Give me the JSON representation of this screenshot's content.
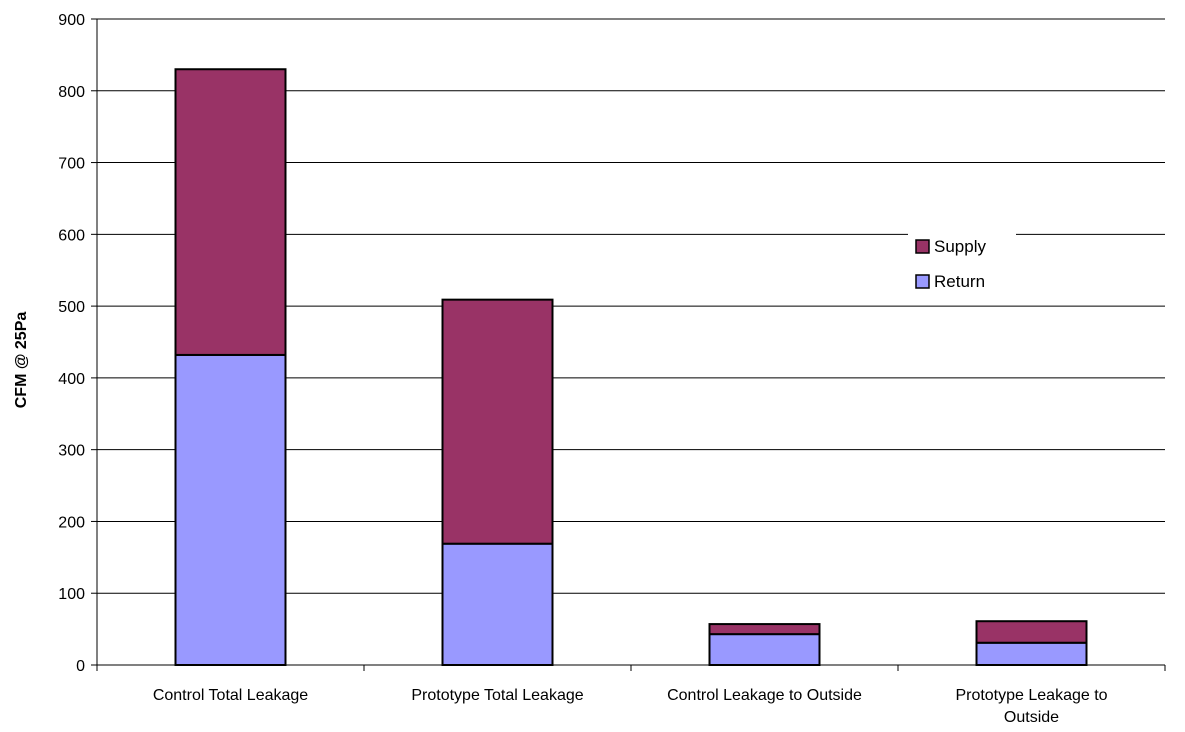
{
  "chart_data": {
    "type": "bar",
    "stacked": true,
    "title": "",
    "xlabel": "",
    "ylabel": "CFM @ 25Pa",
    "ylim": [
      0,
      900
    ],
    "yticks": [
      0,
      100,
      200,
      300,
      400,
      500,
      600,
      700,
      800,
      900
    ],
    "grid": true,
    "legend_position": "right",
    "categories": [
      [
        "Control Total Leakage"
      ],
      [
        "Prototype Total Leakage"
      ],
      [
        "Control Leakage to Outside"
      ],
      [
        "Prototype Leakage to",
        "Outside"
      ]
    ],
    "series": [
      {
        "name": "Return",
        "color": "#9999ff",
        "values": [
          432,
          169,
          43,
          31
        ]
      },
      {
        "name": "Supply",
        "color": "#993366",
        "values": [
          398,
          340,
          14,
          30
        ]
      }
    ],
    "legend_order": [
      "Supply",
      "Return"
    ]
  }
}
